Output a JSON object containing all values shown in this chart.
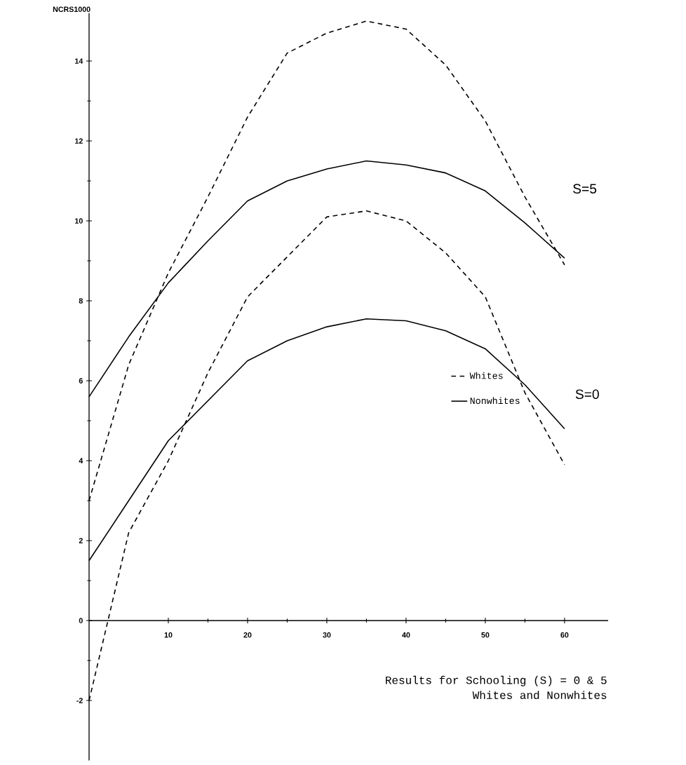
{
  "chart_data": {
    "type": "line",
    "title": "Results for Schooling (S) = 0 & 5",
    "subtitle": "Whites and Nonwhites",
    "ylabel": "NCRS1000",
    "x": [
      0,
      5,
      10,
      15,
      20,
      25,
      30,
      35,
      40,
      45,
      50,
      55,
      60
    ],
    "series": [
      {
        "name": "Whites",
        "color": "#000000",
        "line_style": "dashed",
        "values": [
          3.0,
          6.4,
          8.7,
          10.6,
          12.6,
          14.2,
          14.7,
          15.0,
          14.8,
          13.9,
          12.5,
          10.6,
          8.9
        ]
      },
      {
        "name": "Nonwhites",
        "color": "#000000",
        "line_style": "solid",
        "values": [
          5.6,
          7.1,
          8.45,
          9.5,
          10.5,
          11.0,
          11.3,
          11.5,
          11.4,
          11.2,
          10.75,
          9.95,
          9.07
        ]
      },
      {
        "color": "#000000",
        "line_style": "dashed",
        "values": [
          -2.0,
          2.2,
          4.0,
          6.2,
          8.1,
          9.1,
          10.1,
          10.25,
          10.0,
          9.2,
          8.1,
          5.7,
          3.9
        ]
      },
      {
        "color": "#000000",
        "line_style": "solid",
        "values": [
          1.5,
          3.0,
          4.5,
          5.5,
          6.5,
          7.0,
          7.35,
          7.55,
          7.5,
          7.25,
          6.8,
          5.9,
          4.8
        ]
      }
    ],
    "annotations": [
      "S=5",
      "S=0"
    ],
    "xlim": [
      0,
      65.5
    ],
    "ylim": [
      -3.5,
      15.2
    ],
    "xticks": [
      10,
      20,
      30,
      40,
      50,
      60
    ],
    "yticks": [
      -2,
      0,
      2,
      4,
      6,
      8,
      10,
      12,
      14
    ],
    "legend": "right"
  }
}
